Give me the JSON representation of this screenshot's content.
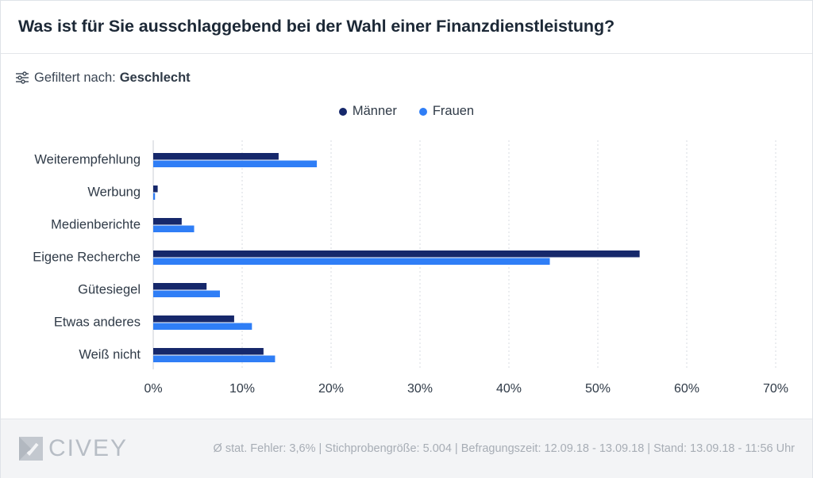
{
  "header": {
    "title": "Was ist für Sie ausschlaggebend bei der Wahl einer Finanzdienstleistung?"
  },
  "filter": {
    "prefix": "Gefiltert nach:",
    "value": "Geschlecht",
    "icon": "sliders-icon"
  },
  "legend": [
    {
      "label": "Männer",
      "color": "#16286b"
    },
    {
      "label": "Frauen",
      "color": "#2f7ef6"
    }
  ],
  "chart_data": {
    "type": "bar",
    "orientation": "horizontal",
    "categories": [
      "Weiterempfehlung",
      "Werbung",
      "Medienberichte",
      "Eigene Recherche",
      "Gütesiegel",
      "Etwas anderes",
      "Weiß nicht"
    ],
    "series": [
      {
        "name": "Männer",
        "color": "#16286b",
        "values": [
          14.1,
          0.5,
          3.2,
          54.7,
          6.0,
          9.1,
          12.4
        ]
      },
      {
        "name": "Frauen",
        "color": "#2f7ef6",
        "values": [
          18.4,
          0.2,
          4.6,
          44.6,
          7.5,
          11.1,
          13.7
        ]
      }
    ],
    "xticks": [
      "0%",
      "10%",
      "20%",
      "30%",
      "40%",
      "50%",
      "60%",
      "70%"
    ],
    "xlim": [
      0,
      70
    ],
    "grid": true,
    "legend_position": "top-center"
  },
  "footer": {
    "logo_text": "CIVEY",
    "info": "Ø stat. Fehler: 3,6% | Stichprobengröße: 5.004 | Befragungszeit: 12.09.18 - 13.09.18 | Stand: 13.09.18 - 11:56 Uhr"
  }
}
